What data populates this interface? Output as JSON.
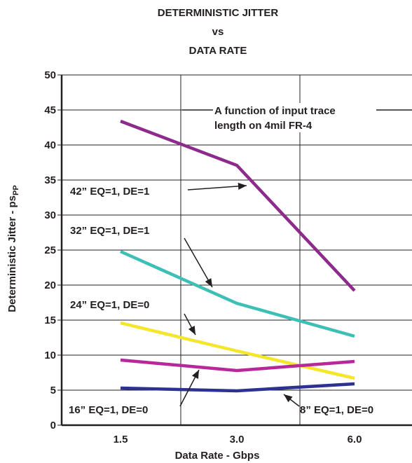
{
  "chart_data": {
    "type": "line",
    "title_lines": [
      "DETERMINISTIC JITTER",
      "vs",
      "DATA RATE"
    ],
    "xlabel": "Data Rate - Gbps",
    "ylabel_main": "Deterministic Jitter - ps",
    "ylabel_sub": "PP",
    "categories": [
      "1.5",
      "3.0",
      "6.0"
    ],
    "ylim": [
      0,
      50
    ],
    "yticks": [
      "0",
      "5",
      "10",
      "15",
      "20",
      "25",
      "30",
      "35",
      "40",
      "45",
      "50"
    ],
    "grid": true,
    "note_lines": [
      "A function of input trace",
      "length on 4mil FR-4"
    ],
    "series": [
      {
        "name": "42” EQ=1, DE=1",
        "color": "#8e2a8b",
        "values": [
          43.4,
          37.1,
          19.2
        ]
      },
      {
        "name": "32” EQ=1, DE=1",
        "color": "#3cbfb4",
        "values": [
          24.8,
          17.4,
          12.7
        ]
      },
      {
        "name": "24” EQ=1, DE=0",
        "color": "#f3e62b",
        "values": [
          14.6,
          10.6,
          6.7
        ]
      },
      {
        "name": "16” EQ=1, DE=0",
        "color": "#2d3291",
        "values": [
          5.3,
          4.9,
          5.9
        ]
      },
      {
        "name": "8” EQ=1, DE=0",
        "color": "#b7289a",
        "values": [
          9.3,
          7.8,
          9.1
        ]
      }
    ]
  }
}
